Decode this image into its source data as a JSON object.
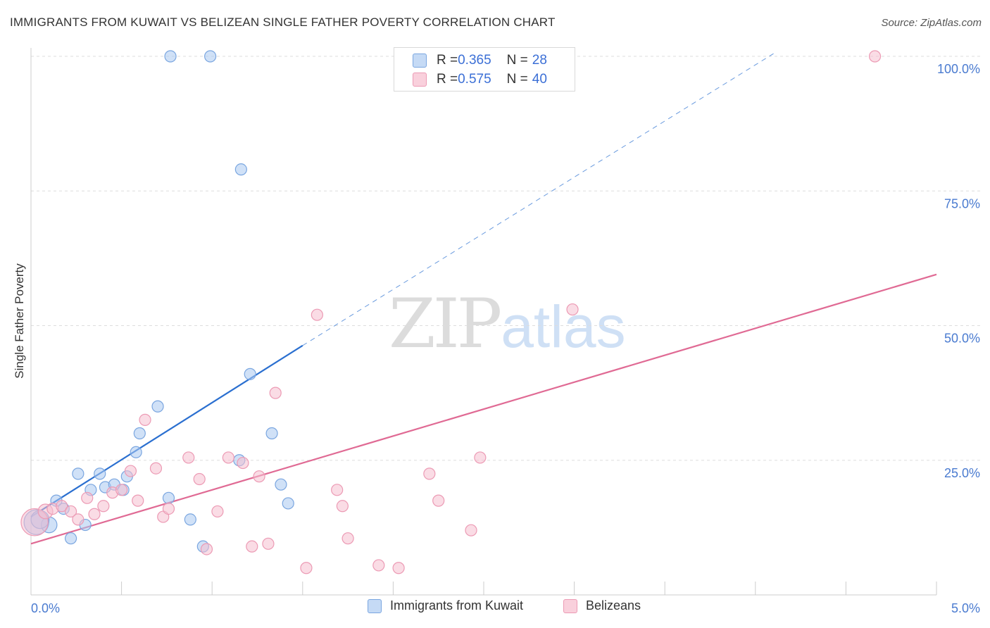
{
  "header": {
    "title": "IMMIGRANTS FROM KUWAIT VS BELIZEAN SINGLE FATHER POVERTY CORRELATION CHART",
    "source": "Source: ZipAtlas.com"
  },
  "watermark": {
    "zip": "ZIP",
    "atlas": "atlas"
  },
  "stats": [
    {
      "r_label": "R = ",
      "r_value": "0.365",
      "n_label": "N = ",
      "n_value": "28"
    },
    {
      "r_label": "R = ",
      "r_value": "0.575",
      "n_label": "N = ",
      "n_value": "40"
    }
  ],
  "colors": {
    "blue_fill": "#a9c8f0",
    "blue_stroke": "#7aa6e0",
    "blue_line": "#2a6fd0",
    "pink_fill": "#f6bfd0",
    "pink_stroke": "#ec9ab4",
    "pink_line": "#e06a94",
    "grid": "#dddddd",
    "tick_label": "#4a7bd0"
  },
  "chart_data": {
    "type": "scatter",
    "title": "IMMIGRANTS FROM KUWAIT VS BELIZEAN SINGLE FATHER POVERTY CORRELATION CHART",
    "xlabel": "",
    "ylabel": "Single Father Poverty",
    "xlim": [
      0,
      5
    ],
    "ylim": [
      0,
      100
    ],
    "x_tick_labels": [
      "0.0%",
      "5.0%"
    ],
    "y_tick_labels": [
      "25.0%",
      "50.0%",
      "75.0%",
      "100.0%"
    ],
    "y_ticks": [
      25,
      50,
      75,
      100
    ],
    "grid": true,
    "legend_position": "bottom",
    "series": [
      {
        "name": "Immigrants from Kuwait",
        "color": "blue",
        "r": 0.365,
        "n": 28,
        "trend": {
          "x_start": 0.0,
          "y_start": 14.5,
          "x_solid_end": 1.5,
          "y_solid_end": 46.3,
          "x_dash_end": 4.1,
          "y_dash_end": 100.5
        },
        "points": [
          [
            0.03,
            13.5,
            2.2
          ],
          [
            0.1,
            13.0,
            1.4
          ],
          [
            0.05,
            14.0,
            1.6
          ],
          [
            0.14,
            17.5,
            1
          ],
          [
            0.18,
            16.0,
            1
          ],
          [
            0.22,
            10.5,
            1
          ],
          [
            0.26,
            22.5,
            1
          ],
          [
            0.3,
            13.0,
            1
          ],
          [
            0.33,
            19.5,
            1
          ],
          [
            0.38,
            22.5,
            1
          ],
          [
            0.41,
            20.0,
            1
          ],
          [
            0.46,
            20.5,
            1
          ],
          [
            0.51,
            19.5,
            1
          ],
          [
            0.53,
            22.0,
            1
          ],
          [
            0.58,
            26.5,
            1
          ],
          [
            0.6,
            30.0,
            1
          ],
          [
            0.7,
            35.0,
            1
          ],
          [
            0.76,
            18.0,
            1
          ],
          [
            0.88,
            14.0,
            1
          ],
          [
            0.95,
            9.0,
            1
          ],
          [
            1.15,
            25.0,
            1
          ],
          [
            1.21,
            41.0,
            1
          ],
          [
            1.33,
            30.0,
            1
          ],
          [
            1.38,
            20.5,
            1
          ],
          [
            1.42,
            17.0,
            1
          ],
          [
            1.16,
            79.0,
            1
          ],
          [
            0.77,
            100.0,
            1
          ],
          [
            0.99,
            100.0,
            1
          ]
        ]
      },
      {
        "name": "Belizeans",
        "color": "pink",
        "r": 0.575,
        "n": 40,
        "trend": {
          "x_start": 0.0,
          "y_start": 9.5,
          "x_end": 5.0,
          "y_end": 59.5
        },
        "points": [
          [
            0.02,
            13.5,
            2.4
          ],
          [
            0.08,
            15.5,
            1.3
          ],
          [
            0.12,
            16.0,
            1
          ],
          [
            0.17,
            16.5,
            1
          ],
          [
            0.22,
            15.5,
            1
          ],
          [
            0.26,
            14.0,
            1
          ],
          [
            0.31,
            18.0,
            1
          ],
          [
            0.35,
            15.0,
            1
          ],
          [
            0.4,
            16.5,
            1
          ],
          [
            0.45,
            19.0,
            1
          ],
          [
            0.5,
            19.5,
            1
          ],
          [
            0.55,
            23.0,
            1
          ],
          [
            0.59,
            17.5,
            1
          ],
          [
            0.63,
            32.5,
            1
          ],
          [
            0.69,
            23.5,
            1
          ],
          [
            0.73,
            14.5,
            1
          ],
          [
            0.76,
            16.0,
            1
          ],
          [
            0.87,
            25.5,
            1
          ],
          [
            0.93,
            21.5,
            1
          ],
          [
            0.97,
            8.5,
            1
          ],
          [
            1.03,
            15.5,
            1
          ],
          [
            1.09,
            25.5,
            1
          ],
          [
            1.17,
            24.5,
            1
          ],
          [
            1.22,
            9.0,
            1
          ],
          [
            1.26,
            22.0,
            1
          ],
          [
            1.31,
            9.5,
            1
          ],
          [
            1.35,
            37.5,
            1
          ],
          [
            1.52,
            5.0,
            1
          ],
          [
            1.58,
            52.0,
            1
          ],
          [
            1.69,
            19.5,
            1
          ],
          [
            1.72,
            16.5,
            1
          ],
          [
            1.75,
            10.5,
            1
          ],
          [
            1.92,
            5.5,
            1
          ],
          [
            2.03,
            5.0,
            1
          ],
          [
            2.2,
            22.5,
            1
          ],
          [
            2.25,
            17.5,
            1
          ],
          [
            2.43,
            12.0,
            1
          ],
          [
            2.48,
            25.5,
            1
          ],
          [
            2.99,
            53.0,
            1
          ],
          [
            4.66,
            100.0,
            1
          ]
        ]
      }
    ]
  }
}
